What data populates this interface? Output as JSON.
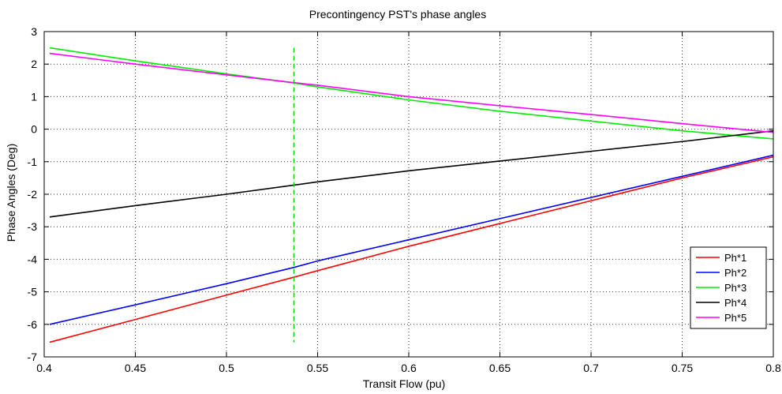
{
  "chart_data": {
    "type": "line",
    "title": "Precontingency PST's phase angles",
    "xlabel": "Transit Flow (pu)",
    "ylabel": "Phase Angles (Deg)",
    "xlim": [
      0.4,
      0.8
    ],
    "ylim": [
      -7,
      3
    ],
    "xticks": [
      0.4,
      0.45,
      0.5,
      0.55,
      0.6,
      0.65,
      0.7,
      0.75,
      0.8
    ],
    "xtick_labels": [
      "0.4",
      "0.45",
      "0.5",
      "0.55",
      "0.6",
      "0.65",
      "0.7",
      "0.75",
      "0.8"
    ],
    "yticks": [
      -7,
      -6,
      -5,
      -4,
      -3,
      -2,
      -1,
      0,
      1,
      2,
      3
    ],
    "ytick_labels": [
      "-7",
      "-6",
      "-5",
      "-4",
      "-3",
      "-2",
      "-1",
      "0",
      "1",
      "2",
      "3"
    ],
    "grid": true,
    "legend_position": "bottom-right",
    "colors": {
      "axis": "#000000",
      "grid": "#000000",
      "background": "#ffffff",
      "marker_line": "#00cc00"
    },
    "series": [
      {
        "name": "Ph*1",
        "color": "#ff0000",
        "x": [
          0.403,
          0.45,
          0.5,
          0.537,
          0.55,
          0.6,
          0.65,
          0.7,
          0.75,
          0.8
        ],
        "y": [
          -6.55,
          -5.85,
          -5.1,
          -4.55,
          -4.35,
          -3.6,
          -2.9,
          -2.2,
          -1.5,
          -0.85
        ]
      },
      {
        "name": "Ph*2",
        "color": "#0000ff",
        "x": [
          0.403,
          0.45,
          0.5,
          0.537,
          0.55,
          0.6,
          0.65,
          0.7,
          0.75,
          0.8
        ],
        "y": [
          -6.0,
          -5.4,
          -4.75,
          -4.25,
          -4.05,
          -3.4,
          -2.75,
          -2.1,
          -1.45,
          -0.8
        ]
      },
      {
        "name": "Ph*3",
        "color": "#00ee00",
        "x": [
          0.403,
          0.45,
          0.5,
          0.537,
          0.55,
          0.6,
          0.65,
          0.7,
          0.75,
          0.8
        ],
        "y": [
          2.5,
          2.1,
          1.7,
          1.42,
          1.3,
          0.9,
          0.55,
          0.25,
          -0.05,
          -0.3
        ]
      },
      {
        "name": "Ph*4",
        "color": "#000000",
        "x": [
          0.403,
          0.45,
          0.5,
          0.537,
          0.55,
          0.6,
          0.65,
          0.7,
          0.75,
          0.8
        ],
        "y": [
          -2.7,
          -2.35,
          -2.0,
          -1.72,
          -1.62,
          -1.28,
          -0.98,
          -0.68,
          -0.38,
          -0.05
        ]
      },
      {
        "name": "Ph*5",
        "color": "#ff00ff",
        "x": [
          0.403,
          0.45,
          0.5,
          0.537,
          0.55,
          0.6,
          0.65,
          0.7,
          0.75,
          0.8
        ],
        "y": [
          2.33,
          2.0,
          1.67,
          1.43,
          1.35,
          1.0,
          0.72,
          0.45,
          0.17,
          -0.1
        ]
      }
    ],
    "vertical_marker": {
      "x": 0.537,
      "y_range": [
        -6.55,
        2.5
      ],
      "color": "#00cc00",
      "style": "dashed"
    }
  }
}
